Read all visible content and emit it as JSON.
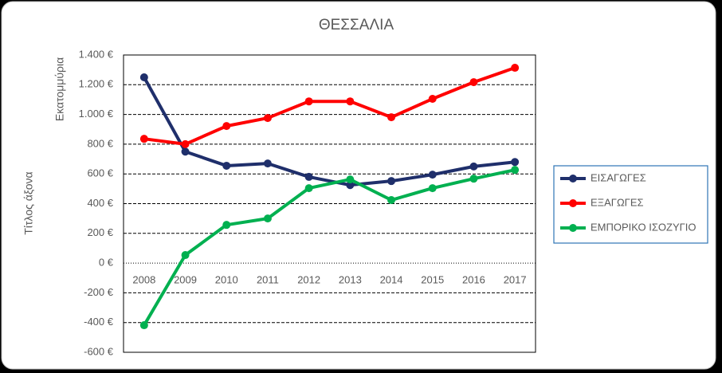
{
  "chart_data": {
    "type": "line",
    "title": "ΘΕΣΣΑΛΙΑ",
    "y_label": "Εκατομμύρια",
    "annotation": "Τίτλος άξονα",
    "categories": [
      "2008",
      "2009",
      "2010",
      "2011",
      "2012",
      "2013",
      "2014",
      "2015",
      "2016",
      "2017"
    ],
    "series": [
      {
        "name": "ΕΙΣΑΓΩΓΕΣ",
        "color": "#1f2f6b",
        "values": [
          1250,
          750,
          655,
          670,
          580,
          525,
          552,
          595,
          650,
          680
        ]
      },
      {
        "name": "ΕΞΑΓΩΓΕΣ",
        "color": "#ff0000",
        "values": [
          836,
          800,
          922,
          976,
          1088,
          1088,
          981,
          1105,
          1217,
          1314
        ]
      },
      {
        "name": "ΕΜΠΟΡΙΚΟ ΙΣΟΖΥΓΙΟ",
        "color": "#00b050",
        "values": [
          -418,
          54,
          257,
          300,
          504,
          563,
          424,
          504,
          568,
          627
        ]
      }
    ],
    "ylim": [
      -600,
      1400
    ],
    "yticks": [
      {
        "value": -600,
        "label": "-600 €"
      },
      {
        "value": -400,
        "label": "-400 €"
      },
      {
        "value": -200,
        "label": "-200 €"
      },
      {
        "value": 0,
        "label": "0 €"
      },
      {
        "value": 200,
        "label": "200 €"
      },
      {
        "value": 400,
        "label": "400 €"
      },
      {
        "value": 600,
        "label": "600 €"
      },
      {
        "value": 800,
        "label": "800 €"
      },
      {
        "value": 1000,
        "label": "1.000 €"
      },
      {
        "value": 1200,
        "label": "1.200 €"
      },
      {
        "value": 1400,
        "label": "1.400 €"
      }
    ],
    "grid": true,
    "legend": "right"
  }
}
